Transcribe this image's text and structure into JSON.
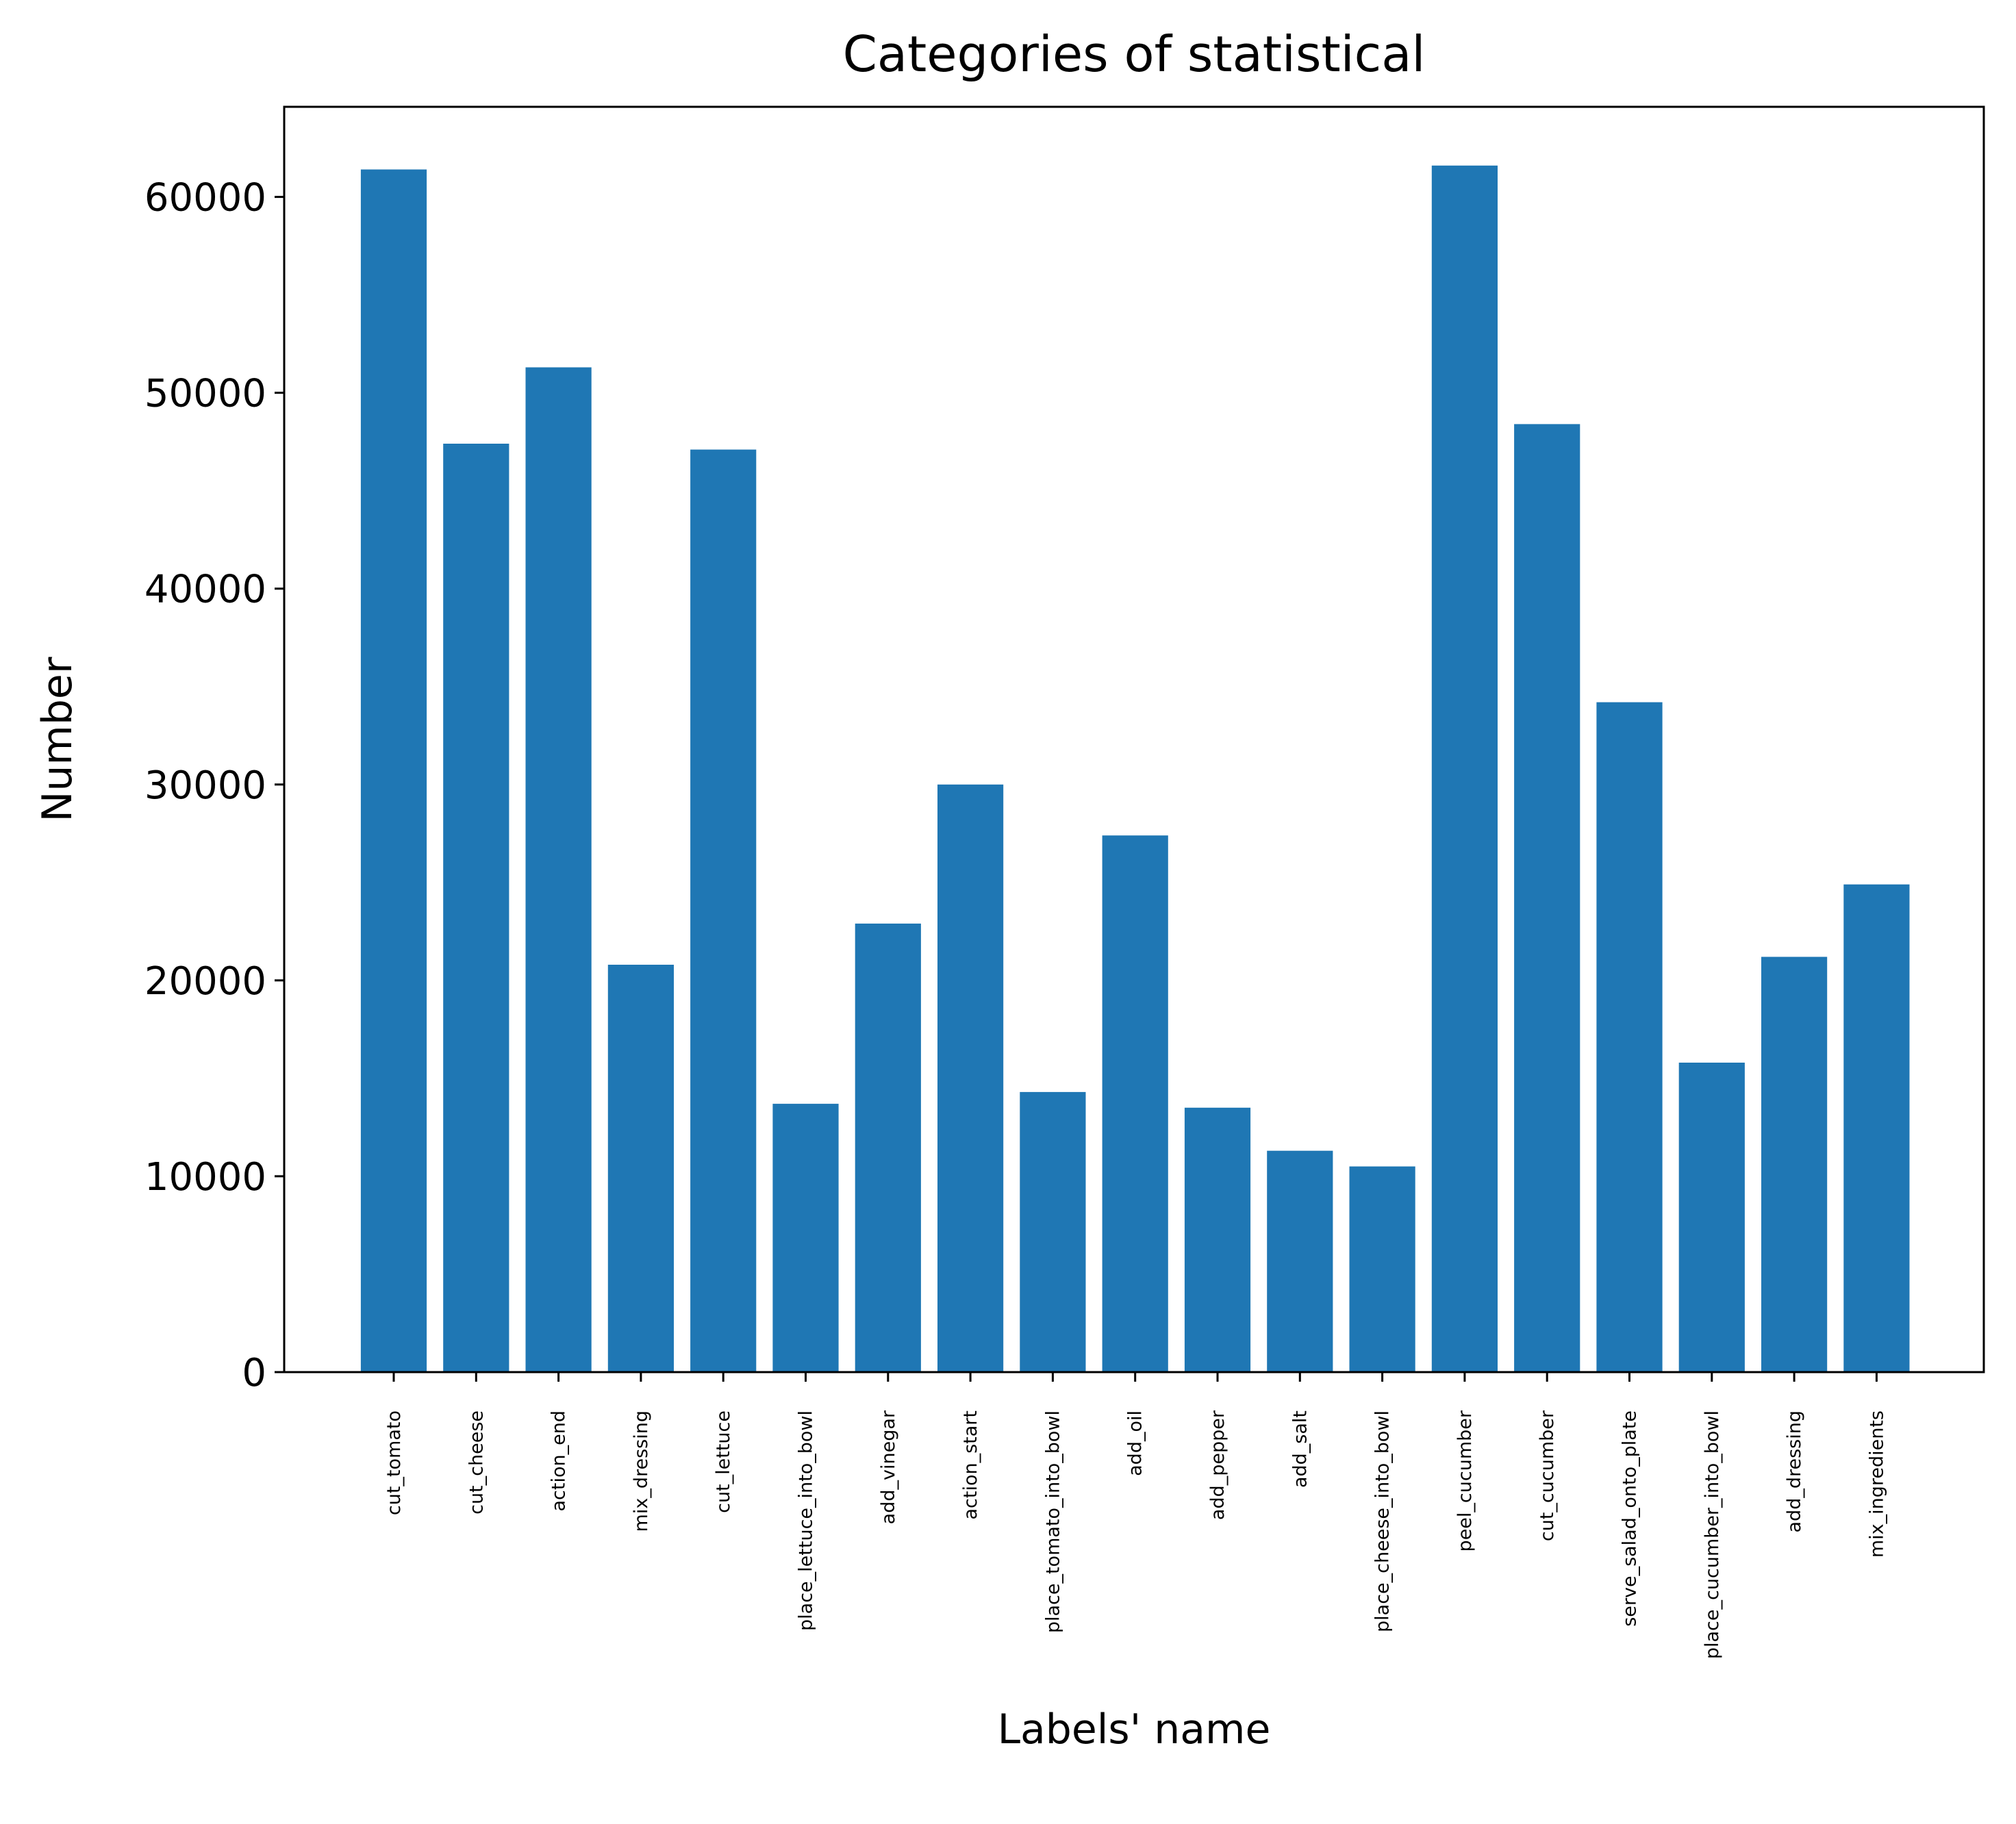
{
  "chart_data": {
    "type": "bar",
    "title": "Categories of statistical",
    "xlabel": "Labels' name",
    "ylabel": "Number",
    "categories": [
      "cut_tomato",
      "cut_cheese",
      "action_end",
      "mix_dressing",
      "cut_lettuce",
      "place_lettuce_into_bowl",
      "add_vinegar",
      "action_start",
      "place_tomato_into_bowl",
      "add_oil",
      "add_pepper",
      "add_salt",
      "place_cheese_into_bowl",
      "peel_cucumber",
      "cut_cucumber",
      "serve_salad_onto_plate",
      "place_cucumber_into_bowl",
      "add_dressing",
      "mix_ingredients"
    ],
    "values": [
      61400,
      47400,
      51300,
      20800,
      47100,
      13700,
      22900,
      30000,
      14300,
      27400,
      13500,
      11300,
      10500,
      61600,
      48400,
      34200,
      15800,
      21200,
      24900
    ],
    "ylim": [
      0,
      64600
    ],
    "yticks": [
      0,
      10000,
      20000,
      30000,
      40000,
      50000,
      60000
    ],
    "grid": false,
    "legend": "none",
    "bar_color": "#1f77b4"
  }
}
